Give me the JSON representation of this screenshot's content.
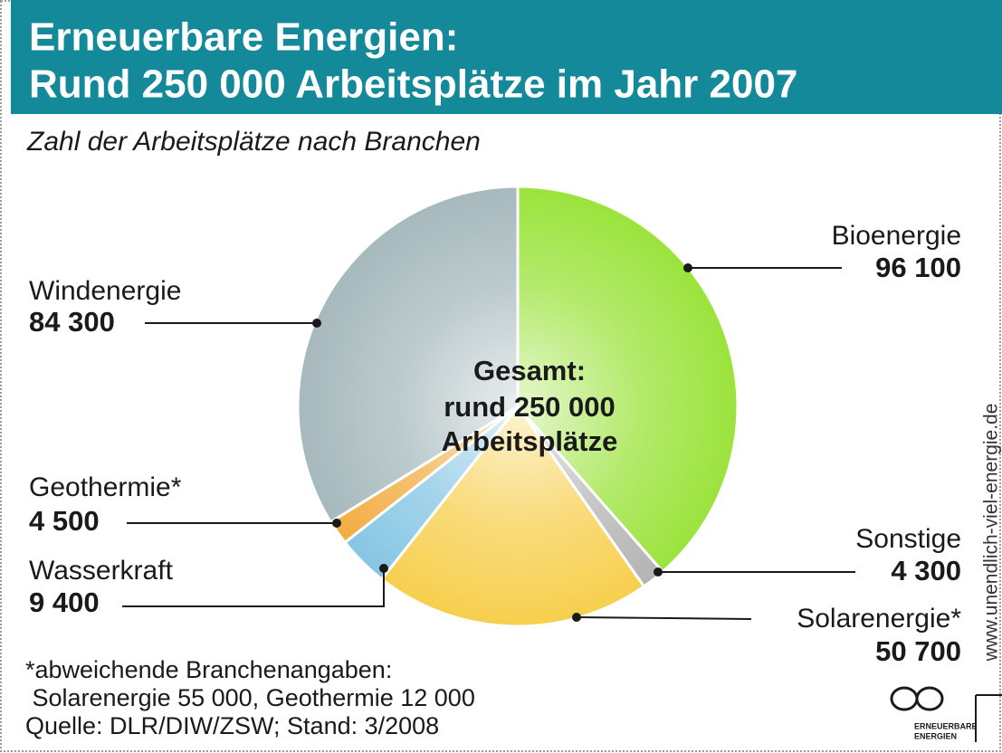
{
  "chart_data": {
    "type": "pie",
    "title": [
      "Erneuerbare Energien:",
      "Rund 250 000 Arbeitsplätze im Jahr 2007"
    ],
    "subtitle": "Zahl der Arbeitsplätze nach Branchen",
    "categories": [
      "Bioenergie",
      "Sonstige",
      "Solarenergie*",
      "Wasserkraft",
      "Geothermie*",
      "Windenergie"
    ],
    "values": [
      96100,
      4300,
      50700,
      9400,
      4500,
      84300
    ],
    "value_labels": [
      "96 100",
      "4 300",
      "50 700",
      "9 400",
      "4 500",
      "84 300"
    ],
    "colors": [
      "#9be33c",
      "#b4b4b4",
      "#f7cf4e",
      "#86c6e4",
      "#f2ad42",
      "#a6b9bd"
    ],
    "center_annotation": [
      "Gesamt:",
      "rund 250 000",
      "Arbeitsplätze"
    ],
    "footnote": [
      "*abweichende Branchenangaben:",
      " Solarenergie 55 000, Geothermie 12 000"
    ],
    "source": "Quelle: DLR/DIW/ZSW; Stand: 3/2008",
    "url": "www.unendlich-viel-energie.de",
    "logo_text": [
      "ERNEUERBARE",
      "ENERGIEN"
    ]
  }
}
